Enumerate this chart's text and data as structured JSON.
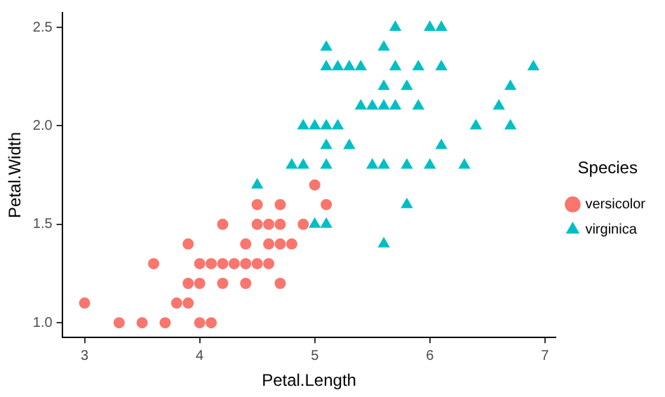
{
  "chart_data": {
    "type": "scatter",
    "xlabel": "Petal.Length",
    "ylabel": "Petal.Width",
    "legend_title": "Species",
    "legend": "right",
    "grid": false,
    "xlim": [
      2.805,
      7.095
    ],
    "xticks": [
      3,
      4,
      5,
      6,
      7
    ],
    "ylim": [
      0.925,
      2.575
    ],
    "yticks": [
      {
        "value": 1,
        "label": "1.0"
      },
      {
        "value": 1.5,
        "label": "1.5"
      },
      {
        "value": 2,
        "label": "2.0"
      },
      {
        "value": 2.5,
        "label": "2.5"
      }
    ],
    "series": [
      {
        "name": "versicolor",
        "color": "#f8766d",
        "marker": "circle",
        "x": [
          4.7,
          4.5,
          4.9,
          4.0,
          4.6,
          4.5,
          4.7,
          3.3,
          4.6,
          3.9,
          3.5,
          4.2,
          4.0,
          3.6,
          4.4,
          4.1,
          3.9,
          4.7,
          4.3,
          4.8,
          5.0,
          3.8,
          3.7,
          3.9,
          5.1,
          4.5,
          4.7,
          4.4,
          4.1,
          4.4,
          4.6,
          4.0,
          4.2,
          4.2,
          3.0
        ],
        "values": [
          1.4,
          1.5,
          1.5,
          1.3,
          1.5,
          1.3,
          1.6,
          1.0,
          1.3,
          1.4,
          1.0,
          1.5,
          1.0,
          1.3,
          1.4,
          1.0,
          1.1,
          1.2,
          1.3,
          1.4,
          1.7,
          1.1,
          1.0,
          1.2,
          1.6,
          1.6,
          1.5,
          1.3,
          1.3,
          1.2,
          1.4,
          1.2,
          1.3,
          1.2,
          1.1
        ]
      },
      {
        "name": "virginica",
        "color": "#00bfc4",
        "marker": "triangle",
        "x": [
          6.0,
          5.1,
          5.9,
          5.6,
          5.8,
          6.6,
          4.5,
          6.3,
          5.8,
          6.1,
          5.1,
          5.3,
          5.5,
          5.0,
          5.1,
          5.3,
          5.5,
          6.7,
          6.9,
          5.0,
          5.7,
          4.9,
          6.7,
          4.9,
          5.7,
          6.0,
          4.8,
          5.6,
          5.8,
          6.1,
          6.4,
          5.6,
          5.1,
          5.6,
          6.1,
          5.6,
          5.4,
          5.1,
          5.9,
          5.7,
          5.2,
          5.2,
          5.4,
          5.1
        ],
        "values": [
          2.5,
          1.9,
          2.1,
          1.8,
          2.2,
          2.1,
          1.7,
          1.8,
          1.8,
          2.5,
          2.0,
          1.9,
          2.1,
          2.0,
          2.4,
          2.3,
          1.8,
          2.2,
          2.3,
          1.5,
          2.3,
          2.0,
          2.0,
          1.8,
          2.1,
          1.8,
          1.8,
          2.1,
          1.6,
          1.9,
          2.0,
          2.2,
          1.5,
          1.4,
          2.3,
          2.4,
          2.1,
          2.3,
          2.3,
          2.5,
          2.3,
          2.0,
          2.3,
          1.8
        ]
      }
    ]
  }
}
